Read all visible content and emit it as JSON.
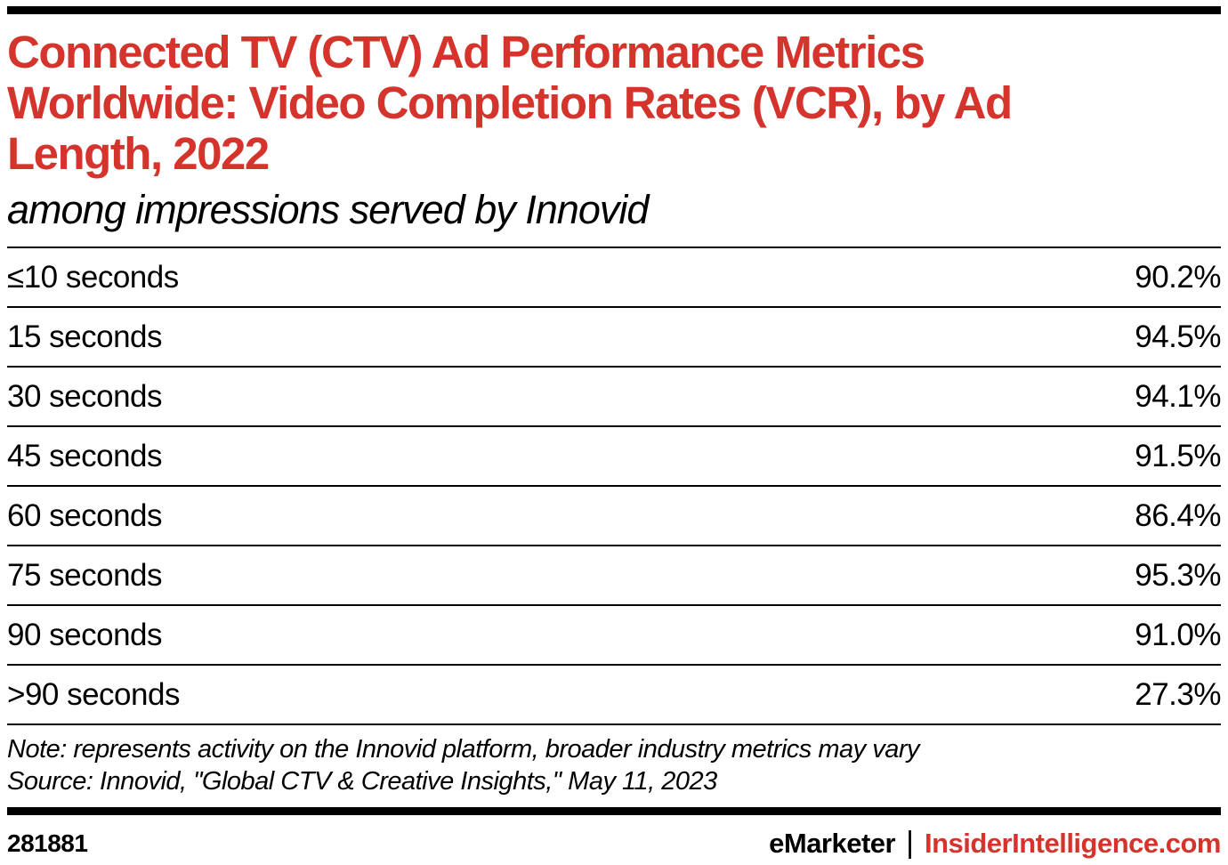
{
  "title": "Connected TV (CTV) Ad Performance Metrics Worldwide: Video Completion Rates (VCR), by Ad Length, 2022",
  "title_lines": [
    "Connected TV (CTV) Ad Performance Metrics",
    "Worldwide: Video Completion Rates (VCR), by Ad",
    "Length, 2022"
  ],
  "subtitle": "among impressions served by Innovid",
  "chart_data": {
    "type": "table",
    "title": "Connected TV (CTV) Ad Performance Metrics Worldwide: Video Completion Rates (VCR), by Ad Length, 2022",
    "subtitle": "among impressions served by Innovid",
    "categories": [
      "≤10 seconds",
      "15 seconds",
      "30 seconds",
      "45 seconds",
      "60 seconds",
      "75 seconds",
      "90 seconds",
      ">90 seconds"
    ],
    "values": [
      90.2,
      94.5,
      94.1,
      91.5,
      86.4,
      95.3,
      91.0,
      27.3
    ],
    "value_labels": [
      "90.2%",
      "94.5%",
      "94.1%",
      "91.5%",
      "86.4%",
      "95.3%",
      "91.0%",
      "27.3%"
    ],
    "unit": "%",
    "note": "Note: represents activity on the Innovid platform, broader industry metrics may vary",
    "source": "Source: Innovid, \"Global CTV & Creative Insights,\" May 11, 2023"
  },
  "note": "Note: represents activity on the Innovid platform, broader industry metrics may vary",
  "source": "Source: Innovid, \"Global CTV & Creative Insights,\" May 11, 2023",
  "footer": {
    "chart_id": "281881",
    "brand": "eMarketer",
    "separator": "|",
    "site": "InsiderIntelligence.com"
  },
  "colors": {
    "accent_red": "#d5342c",
    "text": "#000000",
    "rule": "#000000"
  }
}
